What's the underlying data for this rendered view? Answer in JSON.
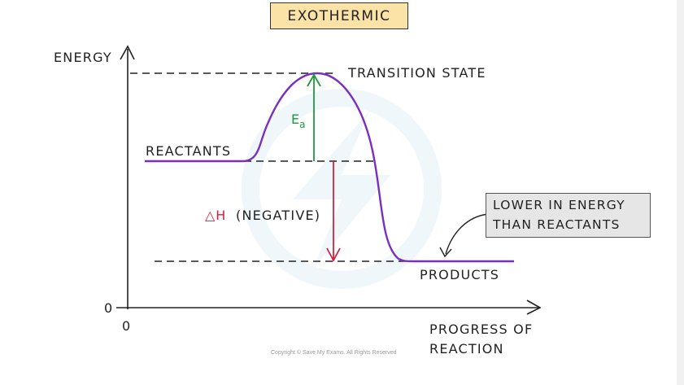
{
  "title": "EXOTHERMIC",
  "axes": {
    "y_label": "ENERGY",
    "y_origin": "0",
    "x_origin": "0",
    "x_label_line1": "PROGRESS OF",
    "x_label_line2": "REACTION"
  },
  "labels": {
    "transition_state": "TRANSITION STATE",
    "reactants": "REACTANTS",
    "products": "PRODUCTS",
    "activation_energy_main": "E",
    "activation_energy_sub": "a",
    "delta_symbol": "△H",
    "delta_note": "(NEGATIVE)"
  },
  "callout": {
    "line1": "LOWER IN ENERGY",
    "line2": "THAN REACTANTS"
  },
  "copyright": "Copyright © Save My Exams. All Rights Reserved",
  "colors": {
    "curve": "#7b2fbe",
    "activation_arrow": "#1e9a3c",
    "enthalpy_arrow": "#d4213f",
    "title_fill": "#fbe2a6",
    "callout_fill": "#e6e6e6",
    "watermark": "#e3f1f6"
  }
}
